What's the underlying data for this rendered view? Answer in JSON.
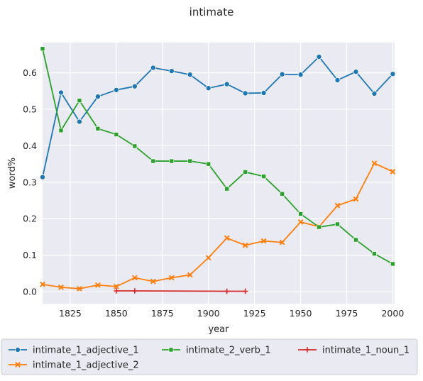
{
  "chart_data": {
    "type": "line",
    "title": "intimate",
    "xlabel": "year",
    "ylabel": "word%",
    "xlim": [
      1810,
      2001
    ],
    "ylim": [
      -0.033,
      0.683
    ],
    "xticks": [
      1825,
      1850,
      1875,
      1900,
      1925,
      1950,
      1975,
      2000
    ],
    "yticks": [
      0.0,
      0.1,
      0.2,
      0.3,
      0.4,
      0.5,
      0.6
    ],
    "ytick_labels": [
      "0.0",
      "0.1",
      "0.2",
      "0.3",
      "0.4",
      "0.5",
      "0.6"
    ],
    "grid": true,
    "legend_position": "below",
    "series": [
      {
        "name": "intimate_1_adjective_1",
        "color": "#1f77b4",
        "marker": "circle",
        "x": [
          1810,
          1820,
          1830,
          1840,
          1850,
          1860,
          1870,
          1880,
          1890,
          1900,
          1910,
          1920,
          1930,
          1940,
          1950,
          1960,
          1970,
          1980,
          1990,
          2000
        ],
        "y": [
          0.314,
          0.546,
          0.466,
          0.535,
          0.553,
          0.563,
          0.614,
          0.605,
          0.595,
          0.558,
          0.569,
          0.544,
          0.545,
          0.596,
          0.595,
          0.644,
          0.58,
          0.603,
          0.543,
          0.597
        ]
      },
      {
        "name": "intimate_1_adjective_2",
        "color": "#ff7f0e",
        "marker": "x",
        "x": [
          1810,
          1820,
          1830,
          1840,
          1850,
          1860,
          1870,
          1880,
          1890,
          1900,
          1910,
          1920,
          1930,
          1940,
          1950,
          1960,
          1970,
          1980,
          1990,
          2000
        ],
        "y": [
          0.02,
          0.012,
          0.008,
          0.018,
          0.014,
          0.038,
          0.028,
          0.038,
          0.046,
          0.093,
          0.147,
          0.127,
          0.139,
          0.135,
          0.191,
          0.178,
          0.236,
          0.254,
          0.352,
          0.329
        ]
      },
      {
        "name": "intimate_2_verb_1",
        "color": "#2ca02c",
        "marker": "square",
        "x": [
          1810,
          1820,
          1830,
          1840,
          1850,
          1860,
          1870,
          1880,
          1890,
          1900,
          1910,
          1920,
          1930,
          1940,
          1950,
          1960,
          1970,
          1980,
          1990,
          2000
        ],
        "y": [
          0.666,
          0.442,
          0.524,
          0.447,
          0.431,
          0.399,
          0.358,
          0.358,
          0.358,
          0.35,
          0.282,
          0.328,
          0.316,
          0.268,
          0.213,
          0.177,
          0.185,
          0.142,
          0.104,
          0.076
        ]
      },
      {
        "name": "intimate_1_noun_1",
        "color": "#d62728",
        "marker": "plus",
        "x": [
          1850,
          1860,
          1910,
          1920
        ],
        "y": [
          0.002,
          0.002,
          0.001,
          0.001
        ]
      }
    ]
  }
}
